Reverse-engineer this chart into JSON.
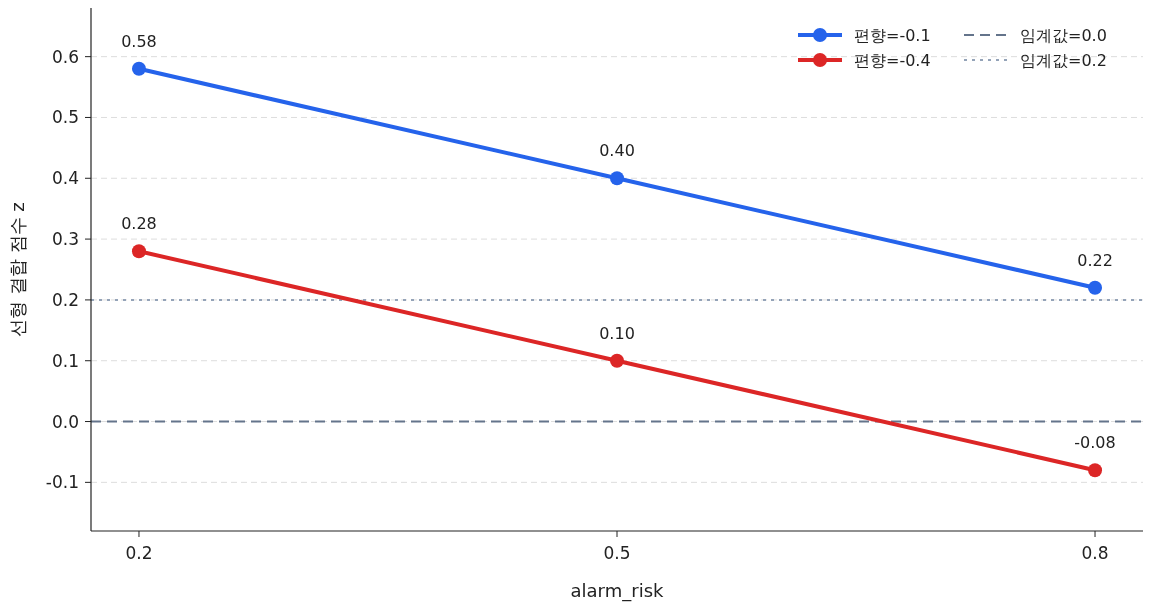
{
  "chart_data": {
    "type": "line",
    "xlabel": "alarm_risk",
    "ylabel": "선형 결합 점수 z",
    "categories": [
      "0.2",
      "0.5",
      "0.8"
    ],
    "series": [
      {
        "name": "편향=-0.1",
        "color": "#2563eb",
        "values": [
          0.58,
          0.4,
          0.22
        ],
        "value_labels": [
          "0.58",
          "0.40",
          "0.22"
        ]
      },
      {
        "name": "편향=-0.4",
        "color": "#dc2626",
        "values": [
          0.28,
          0.1,
          -0.08
        ],
        "value_labels": [
          "0.28",
          "0.10",
          "-0.08"
        ]
      }
    ],
    "ref_lines": [
      {
        "axis": "y",
        "value": 0.0,
        "label": "임계값=0.0",
        "color": "#64748b",
        "line_style": "dashed"
      },
      {
        "axis": "y",
        "value": 0.2,
        "label": "임계값=0.2",
        "color": "#94a3b8",
        "line_style": "dotted"
      }
    ],
    "ylim": [
      -0.18,
      0.68
    ],
    "yticks": [
      -0.1,
      {
        "value": 0,
        "label": "0.0"
      },
      0.1,
      0.2,
      0.3,
      0.4,
      0.5,
      0.6
    ],
    "grid": "y",
    "legend": "top right",
    "marker": "circle",
    "line_style": "solid"
  }
}
